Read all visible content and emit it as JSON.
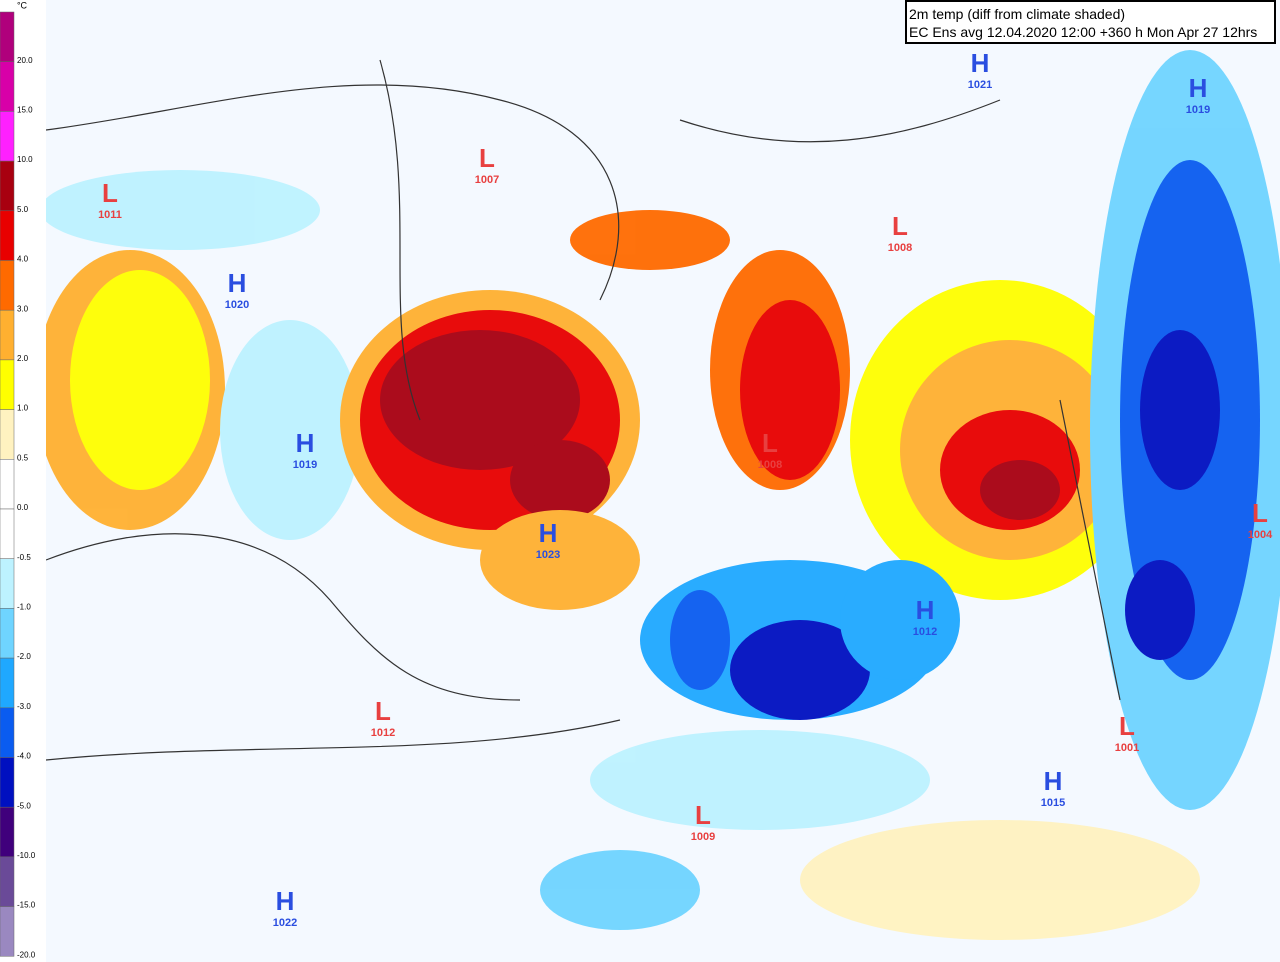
{
  "legend": {
    "unit": "°C",
    "bands": [
      {
        "label": "20.0",
        "color": "#b0007c"
      },
      {
        "label": "15.0",
        "color": "#d800a8"
      },
      {
        "label": "10.0",
        "color": "#ff20ff"
      },
      {
        "label": "5.0",
        "color": "#a80010"
      },
      {
        "label": "4.0",
        "color": "#e80000"
      },
      {
        "label": "3.0",
        "color": "#ff6a00"
      },
      {
        "label": "2.0",
        "color": "#ffb030"
      },
      {
        "label": "1.0",
        "color": "#ffff00"
      },
      {
        "label": "0.5",
        "color": "#fff2c0"
      },
      {
        "label": "0.0",
        "color": "#ffffff"
      },
      {
        "label": "-0.5",
        "color": "#ffffff"
      },
      {
        "label": "-1.0",
        "color": "#bdf2ff"
      },
      {
        "label": "-2.0",
        "color": "#6fd4ff"
      },
      {
        "label": "-3.0",
        "color": "#1fa8ff"
      },
      {
        "label": "-4.0",
        "color": "#0a5cf0"
      },
      {
        "label": "-5.0",
        "color": "#0010c0"
      },
      {
        "label": "-10.0",
        "color": "#40007c"
      },
      {
        "label": "-15.0",
        "color": "#6a4a98"
      },
      {
        "label": "-20.0",
        "color": "#9a88c0"
      }
    ]
  },
  "title": {
    "line1": "2m temp (diff from climate shaded)",
    "line2": "EC Ens avg 12.04.2020 12:00 +360 h Mon Apr 27 12hrs"
  },
  "pressure_centers": [
    {
      "kind": "L",
      "value": "1007"
    },
    {
      "kind": "L",
      "value": "1011"
    },
    {
      "kind": "H",
      "value": "1020"
    },
    {
      "kind": "H",
      "value": "1019"
    },
    {
      "kind": "H",
      "value": "1021"
    },
    {
      "kind": "H",
      "value": "1019"
    },
    {
      "kind": "L",
      "value": "1008"
    },
    {
      "kind": "L",
      "value": "1008"
    },
    {
      "kind": "L",
      "value": "1004"
    },
    {
      "kind": "H",
      "value": "1023"
    },
    {
      "kind": "H",
      "value": "1012"
    },
    {
      "kind": "L",
      "value": "1012"
    },
    {
      "kind": "L",
      "value": "1001"
    },
    {
      "kind": "H",
      "value": "1015"
    },
    {
      "kind": "L",
      "value": "1009"
    },
    {
      "kind": "H",
      "value": "1022"
    }
  ]
}
